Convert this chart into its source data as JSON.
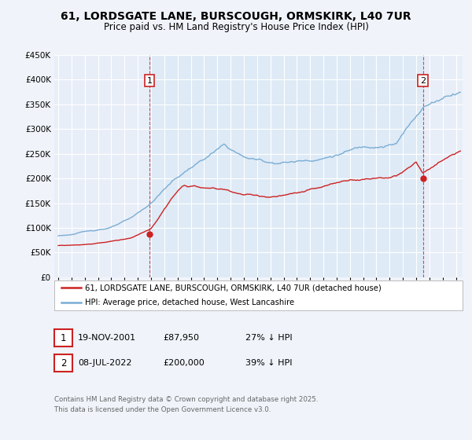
{
  "title_line1": "61, LORDSGATE LANE, BURSCOUGH, ORMSKIRK, L40 7UR",
  "title_line2": "Price paid vs. HM Land Registry's House Price Index (HPI)",
  "bg_color": "#f0f4fa",
  "plot_bg_color": "#e8eef8",
  "plot_bg_shaded": "#d8e8f5",
  "grid_color": "#ffffff",
  "hpi_color": "#7aadd4",
  "price_color": "#cc2222",
  "marker_color": "#cc2222",
  "vline_color": "#dd3333",
  "annotation_box_color": "#cc2222",
  "ylim": [
    0,
    450000
  ],
  "yticks": [
    0,
    50000,
    100000,
    150000,
    200000,
    250000,
    300000,
    350000,
    400000,
    450000
  ],
  "sale1_x": 2001.89,
  "sale1_y": 87950,
  "sale1_label": "1",
  "sale2_x": 2022.52,
  "sale2_y": 200000,
  "sale2_label": "2",
  "legend_entry1": "61, LORDSGATE LANE, BURSCOUGH, ORMSKIRK, L40 7UR (detached house)",
  "legend_entry2": "HPI: Average price, detached house, West Lancashire",
  "table_rows": [
    [
      "1",
      "19-NOV-2001",
      "£87,950",
      "27% ↓ HPI"
    ],
    [
      "2",
      "08-JUL-2022",
      "£200,000",
      "39% ↓ HPI"
    ]
  ],
  "footer": "Contains HM Land Registry data © Crown copyright and database right 2025.\nThis data is licensed under the Open Government Licence v3.0.",
  "xmin": 1994.7,
  "xmax": 2025.5
}
